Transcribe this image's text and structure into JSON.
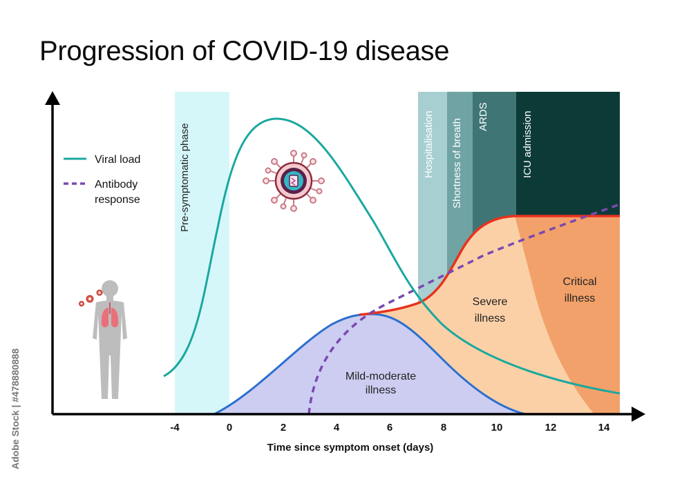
{
  "title": "Progression of COVID-19 disease",
  "x_axis": {
    "label": "Time since symptom onset (days)",
    "ticks": [
      "-4",
      "0",
      "2",
      "4",
      "6",
      "8",
      "10",
      "12",
      "14"
    ]
  },
  "legend": {
    "viral_load": "Viral load",
    "antibody_line1": "Antibody",
    "antibody_line2": "response"
  },
  "phases": {
    "pre_symptomatic": "Pre-symptomatic phase",
    "hospitalisation": "Hospitalisation",
    "shortness_of_breath": "Shortness of breath",
    "ards": "ARDS",
    "icu_admission": "ICU admission"
  },
  "regions": {
    "mild_line1": "Mild-moderate",
    "mild_line2": "illness",
    "severe_line1": "Severe",
    "severe_line2": "illness",
    "critical_line1": "Critical",
    "critical_line2": "illness"
  },
  "watermark": "Adobe Stock | #478880888",
  "colors": {
    "viral_load": "#1aa89e",
    "antibody": "#7b48b0",
    "mild_fill": "#cdcdf2",
    "mild_stroke": "#2a6fd0",
    "severe_fill": "#fbd0a7",
    "critical_fill": "#f2a16a",
    "severity_stroke": "#e8321e",
    "pre_symptomatic_band": "#d6f7fa",
    "hospitalisation_band": "#a7cfd2",
    "breath_band": "#6fa3a4",
    "ards_band": "#3f7675",
    "icu_band": "#0c3b37"
  },
  "icons": {
    "virus": "virus-particle-icon",
    "person": "person-with-lungs-icon"
  }
}
